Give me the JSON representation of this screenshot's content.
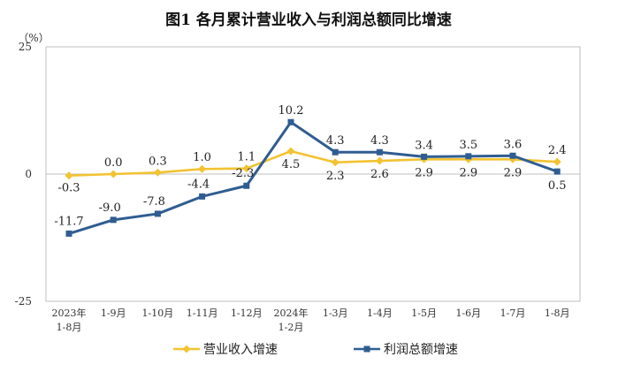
{
  "chart_data": {
    "type": "line",
    "title": "图1  各月累计营业收入与利润总额同比增速",
    "y_unit": "（%）",
    "ylim": [
      -25,
      25
    ],
    "yticks": [
      25,
      0,
      -25
    ],
    "grid": false,
    "legend_position": "bottom",
    "categories": [
      [
        "2023年",
        "1-8月"
      ],
      [
        "1-9月"
      ],
      [
        "1-10月"
      ],
      [
        "1-11月"
      ],
      [
        "1-12月"
      ],
      [
        "2024年",
        "1-2月"
      ],
      [
        "1-3月"
      ],
      [
        "1-4月"
      ],
      [
        "1-5月"
      ],
      [
        "1-6月"
      ],
      [
        "1-7月"
      ],
      [
        "1-8月"
      ]
    ],
    "series": [
      {
        "name": "营业收入增速",
        "color": "#f2c230",
        "marker": "diamond",
        "values": [
          -0.3,
          0.0,
          0.3,
          1.0,
          1.1,
          4.5,
          2.3,
          2.6,
          2.9,
          2.9,
          2.9,
          2.4
        ],
        "labels": [
          "-0.3",
          "0.0",
          "0.3",
          "1.0",
          "1.1",
          "4.5",
          "2.3",
          "2.6",
          "2.9",
          "2.9",
          "2.9",
          "2.4"
        ]
      },
      {
        "name": "利润总额增速",
        "color": "#2f5d91",
        "marker": "square",
        "values": [
          -11.7,
          -9.0,
          -7.8,
          -4.4,
          -2.3,
          10.2,
          4.3,
          4.3,
          3.4,
          3.5,
          3.6,
          0.5
        ],
        "labels": [
          "-11.7",
          "-9.0",
          "-7.8",
          "-4.4",
          "-2.3",
          "10.2",
          "4.3",
          "4.3",
          "3.4",
          "3.5",
          "3.6",
          "0.5"
        ]
      }
    ]
  }
}
